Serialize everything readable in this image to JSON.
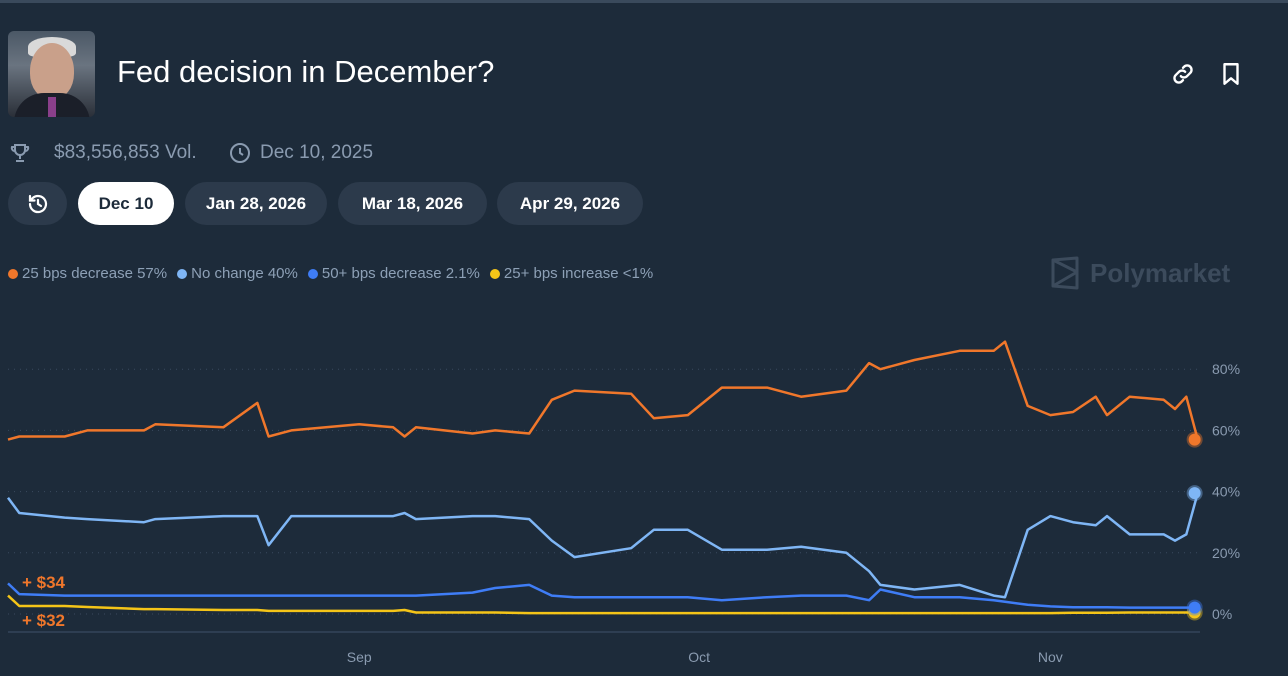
{
  "header": {
    "title": "Fed decision in December?",
    "photo_alt": "Jerome Powell"
  },
  "meta": {
    "volume": "$83,556,853 Vol.",
    "end_date": "Dec 10, 2025",
    "trophy_icon": "trophy-icon",
    "clock_icon": "clock-icon"
  },
  "actions": {
    "link_icon": "link-icon",
    "bookmark_icon": "bookmark-icon"
  },
  "tabs": [
    {
      "label": "Dec 10",
      "active": true
    },
    {
      "label": "Jan 28, 2026"
    },
    {
      "label": "Mar 18, 2026"
    },
    {
      "label": "Apr 29, 2026"
    }
  ],
  "brand": "Polymarket",
  "legend": [
    {
      "label": "25 bps decrease 57%",
      "color": "#f0772b"
    },
    {
      "label": "No change 40%",
      "color": "#7fb6f5"
    },
    {
      "label": "50+ bps decrease 2.1%",
      "color": "#3f7df6"
    },
    {
      "label": "25+ bps increase <1%",
      "color": "#f5c518"
    }
  ],
  "annotations": [
    "+ $34",
    "+ $32"
  ],
  "chart_data": {
    "type": "line",
    "x_ticks": [
      "Sep",
      "Oct",
      "Nov"
    ],
    "x_tick_dates": [
      "2025-09-01",
      "2025-10-01",
      "2025-11-01"
    ],
    "y_ticks": [
      "0%",
      "20%",
      "40%",
      "60%",
      "80%"
    ],
    "y_tick_values": [
      0,
      20,
      40,
      60,
      80
    ],
    "ylim": [
      0,
      100
    ],
    "grid": "horizontal dotted",
    "y_axis": "right",
    "dates": [
      "2025-08-01",
      "2025-08-02",
      "2025-08-06",
      "2025-08-08",
      "2025-08-13",
      "2025-08-14",
      "2025-08-20",
      "2025-08-23",
      "2025-08-24",
      "2025-08-26",
      "2025-09-01",
      "2025-09-04",
      "2025-09-05",
      "2025-09-06",
      "2025-09-11",
      "2025-09-13",
      "2025-09-16",
      "2025-09-18",
      "2025-09-20",
      "2025-09-25",
      "2025-09-27",
      "2025-09-30",
      "2025-10-03",
      "2025-10-07",
      "2025-10-10",
      "2025-10-14",
      "2025-10-16",
      "2025-10-17",
      "2025-10-20",
      "2025-10-24",
      "2025-10-27",
      "2025-10-28",
      "2025-10-30",
      "2025-11-01",
      "2025-11-03",
      "2025-11-05",
      "2025-11-06",
      "2025-11-08",
      "2025-11-11",
      "2025-11-12",
      "2025-11-13",
      "2025-11-14"
    ],
    "series": [
      {
        "name": "25 bps decrease",
        "color": "#f0772b",
        "values": [
          57,
          58,
          58,
          60,
          60,
          62,
          61,
          69,
          58,
          60,
          62,
          61,
          58,
          61,
          59,
          60,
          59,
          70,
          73,
          72,
          64,
          65,
          74,
          74,
          71,
          73,
          82,
          80,
          83,
          86,
          86,
          89,
          68,
          65,
          66,
          71,
          65,
          71,
          70,
          67,
          71,
          57
        ]
      },
      {
        "name": "No change",
        "color": "#7fb6f5",
        "values": [
          38,
          33,
          31.5,
          31,
          30,
          31,
          32,
          32,
          22.5,
          32,
          32,
          32,
          33,
          31,
          32,
          32,
          31,
          24,
          18.6,
          21.5,
          27.5,
          27.5,
          21,
          21,
          22,
          20,
          14,
          9.5,
          8,
          9.5,
          6,
          5.5,
          27.5,
          32,
          30,
          29,
          32,
          26,
          26,
          24,
          26,
          39.5
        ]
      },
      {
        "name": "50+ bps decrease",
        "color": "#3f7df6",
        "values": [
          10,
          6.5,
          6,
          6,
          6,
          6,
          6,
          6,
          6,
          6,
          6,
          6,
          6,
          6,
          7,
          8.5,
          9.5,
          6,
          5.5,
          5.5,
          5.5,
          5.5,
          4.5,
          5.5,
          6,
          6,
          4.5,
          8,
          5.5,
          5.5,
          4.5,
          4,
          3,
          2.5,
          2.2,
          2.2,
          2.2,
          2.1,
          2.1,
          2.1,
          2.1,
          2.1
        ]
      },
      {
        "name": "25+ bps increase",
        "color": "#f5c518",
        "values": [
          6,
          2.6,
          2.6,
          2.3,
          1.6,
          1.6,
          1.3,
          1.3,
          1,
          1,
          1,
          1,
          1.3,
          0.5,
          0.5,
          0.5,
          0.3,
          0.3,
          0.3,
          0.3,
          0.3,
          0.3,
          0.3,
          0.3,
          0.3,
          0.3,
          0.3,
          0.3,
          0.3,
          0.3,
          0.3,
          0.3,
          0.3,
          0.3,
          0.4,
          0.4,
          0.4,
          0.5,
          0.5,
          0.5,
          0.5,
          0.5
        ]
      }
    ]
  }
}
